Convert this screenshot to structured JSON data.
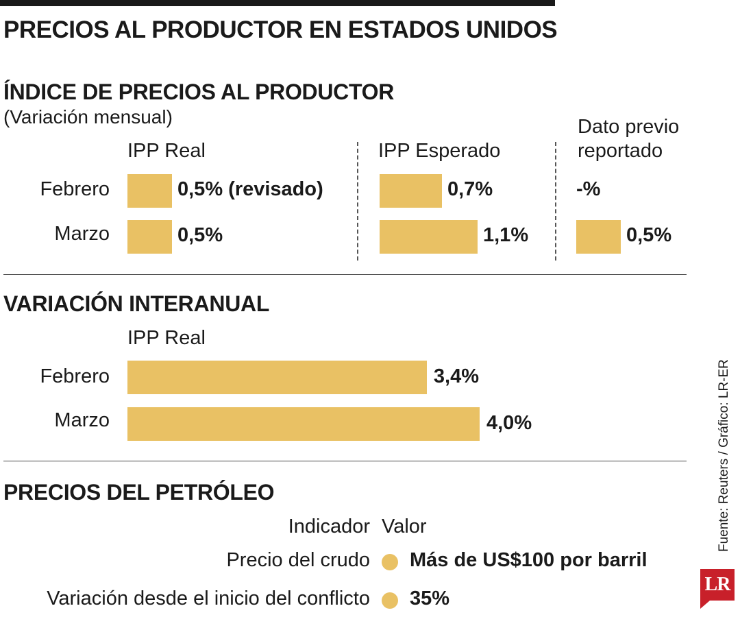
{
  "title": "PRECIOS AL PRODUCTOR EN ESTADOS UNIDOS",
  "section1": {
    "title": "ÍNDICE DE PRECIOS AL PRODUCTOR",
    "subtitle": "(Variación mensual)",
    "columns": [
      "IPP Real",
      "IPP Esperado",
      "Dato previo reportado"
    ],
    "column3_line1": "Dato previo",
    "column3_line2": "reportado",
    "rows": [
      "Febrero",
      "Marzo"
    ]
  },
  "section2": {
    "title": "VARIACIÓN INTERANUAL",
    "column": "IPP Real",
    "rows": [
      "Febrero",
      "Marzo"
    ]
  },
  "section3": {
    "title": "PRECIOS DEL PETRÓLEO",
    "headers": [
      "Indicador",
      "Valor"
    ],
    "rows": [
      {
        "indicator": "Precio del crudo",
        "value": "Más de US$100 por barril"
      },
      {
        "indicator": "Variación desde el inicio del conflicto",
        "value": "35%"
      }
    ]
  },
  "chart_data": [
    {
      "type": "bar",
      "title": "ÍNDICE DE PRECIOS AL PRODUCTOR",
      "subtitle": "(Variación mensual)",
      "categories": [
        "Febrero",
        "Marzo"
      ],
      "series": [
        {
          "name": "IPP Real",
          "values": [
            0.5,
            0.5
          ],
          "labels": [
            "0,5% (revisado)",
            "0,5%"
          ]
        },
        {
          "name": "IPP Esperado",
          "values": [
            0.7,
            1.1
          ],
          "labels": [
            "0,7%",
            "1,1%"
          ]
        },
        {
          "name": "Dato previo reportado",
          "values": [
            null,
            0.5
          ],
          "labels": [
            "-%",
            "0,5%"
          ]
        }
      ]
    },
    {
      "type": "bar",
      "title": "VARIACIÓN INTERANUAL",
      "categories": [
        "Febrero",
        "Marzo"
      ],
      "series": [
        {
          "name": "IPP Real",
          "values": [
            3.4,
            4.0
          ],
          "labels": [
            "3,4%",
            "4,0%"
          ]
        }
      ]
    }
  ],
  "source": "Fuente: Reuters / Gráfico: LR-ER",
  "logo": "LR",
  "colors": {
    "bar": "#e9c164",
    "logo": "#c8202a",
    "text": "#1a1a1a"
  }
}
